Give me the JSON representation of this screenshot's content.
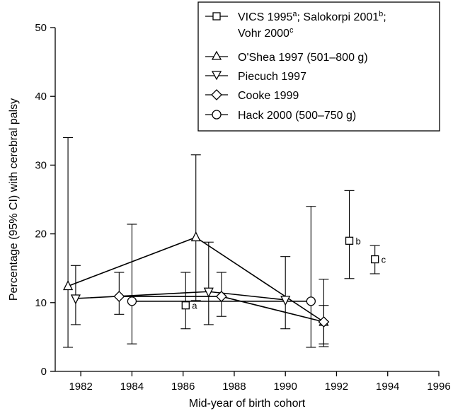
{
  "chart_data": {
    "type": "line",
    "xlabel": "Mid-year of birth cohort",
    "ylabel": "Percentage (95% CI) with cerebral palsy",
    "xlim": [
      1981,
      1996
    ],
    "ylim": [
      0,
      50
    ],
    "xticks": [
      1982,
      1984,
      1986,
      1988,
      1990,
      1992,
      1994,
      1996
    ],
    "yticks": [
      0,
      10,
      20,
      30,
      40,
      50
    ],
    "grid": false,
    "legend_position": "top-right",
    "series": [
      {
        "name": "VICS 1995",
        "legend_sup": "a",
        "name2": "; Salokorpi 2001",
        "legend_sup2": "b",
        "name3": ";",
        "name4": "Vohr 2000",
        "legend_sup4": "c",
        "marker": "square",
        "connected": false,
        "points": [
          {
            "x": 1986.1,
            "y": 9.6,
            "lo": 6.2,
            "hi": 14.4,
            "label": "a"
          },
          {
            "x": 1992.5,
            "y": 19.0,
            "lo": 13.5,
            "hi": 26.3,
            "label": "b"
          },
          {
            "x": 1993.5,
            "y": 16.3,
            "lo": 14.2,
            "hi": 18.3,
            "label": "c"
          }
        ]
      },
      {
        "name": "O'Shea 1997 (501–800 g)",
        "marker": "triangle-up",
        "connected": true,
        "points": [
          {
            "x": 1981.5,
            "y": 12.4,
            "lo": 3.5,
            "hi": 34.0
          },
          {
            "x": 1986.5,
            "y": 19.5,
            "lo": 10.3,
            "hi": 31.5
          },
          {
            "x": 1991.5,
            "y": 7.2,
            "lo": 3.6,
            "hi": 13.4
          }
        ]
      },
      {
        "name": "Piecuch 1997",
        "marker": "triangle-down",
        "connected": true,
        "points": [
          {
            "x": 1981.8,
            "y": 10.6,
            "lo": 6.8,
            "hi": 15.4
          },
          {
            "x": 1987.0,
            "y": 11.6,
            "lo": 6.8,
            "hi": 18.8
          },
          {
            "x": 1990.0,
            "y": 10.4,
            "lo": 6.2,
            "hi": 16.7
          }
        ]
      },
      {
        "name": "Cooke 1999",
        "marker": "diamond",
        "connected": true,
        "points": [
          {
            "x": 1983.5,
            "y": 10.9,
            "lo": 8.3,
            "hi": 14.4
          },
          {
            "x": 1987.5,
            "y": 10.9,
            "lo": 8.0,
            "hi": 14.4
          },
          {
            "x": 1991.5,
            "y": 7.2,
            "lo": 4.0,
            "hi": 9.6
          }
        ]
      },
      {
        "name": "Hack 2000 (500–750 g)",
        "marker": "circle",
        "connected": true,
        "points": [
          {
            "x": 1984.0,
            "y": 10.2,
            "lo": 4.0,
            "hi": 21.4
          },
          {
            "x": 1991.0,
            "y": 10.2,
            "lo": 3.5,
            "hi": 24.0
          }
        ]
      }
    ]
  }
}
